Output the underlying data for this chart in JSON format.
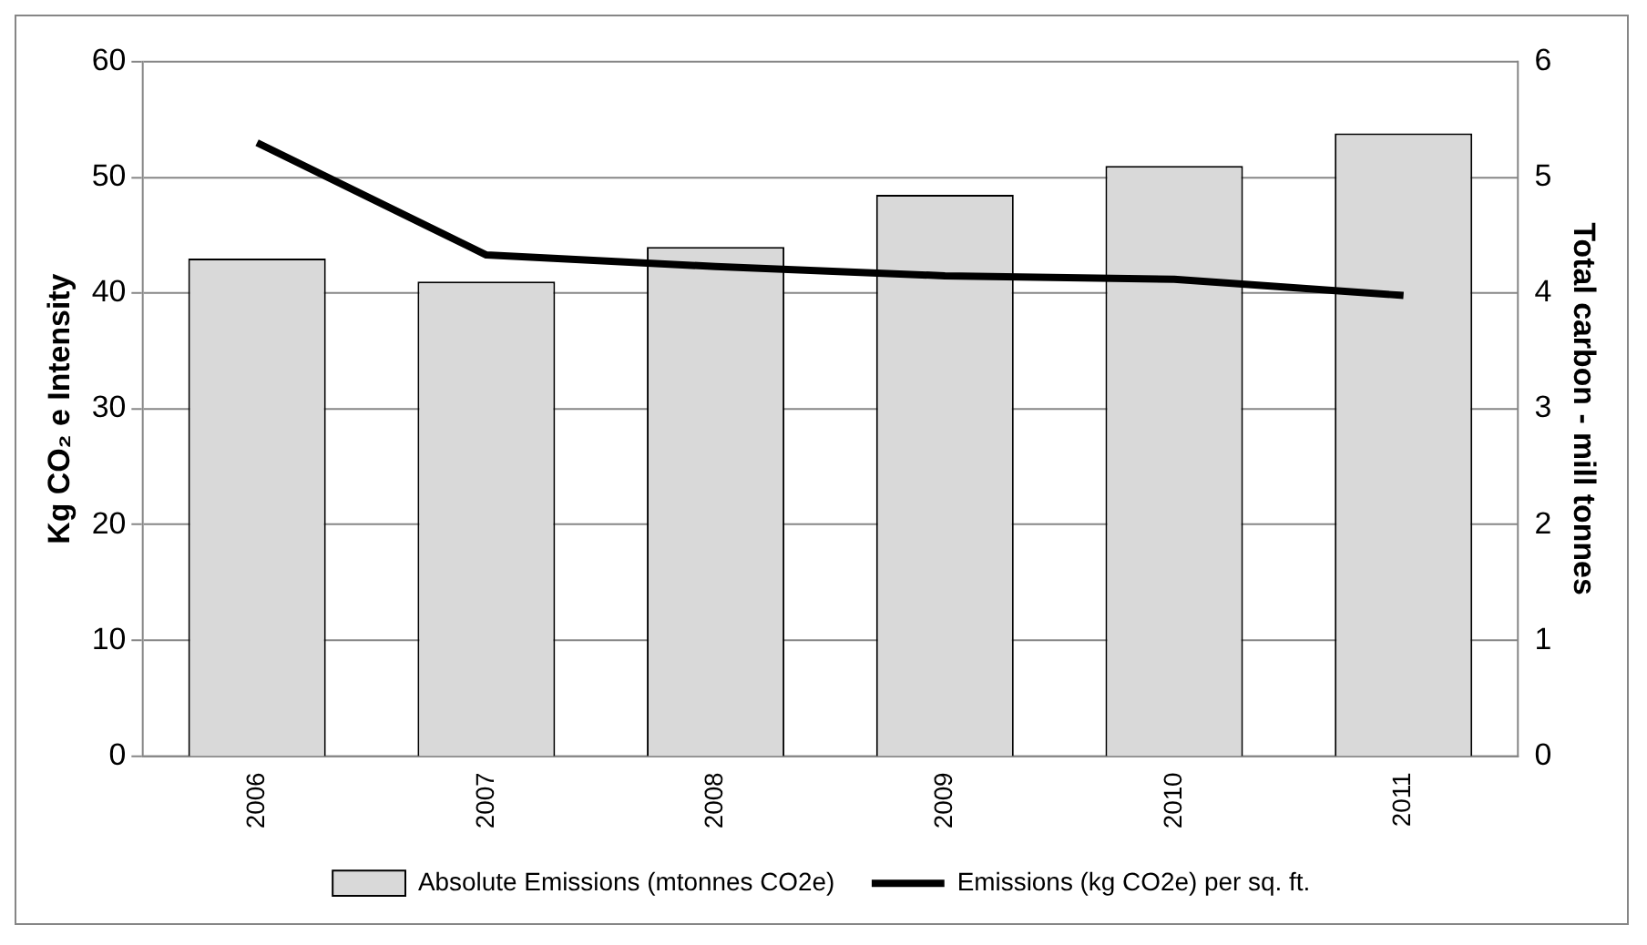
{
  "chart_data": {
    "type": "bar",
    "ylabel": "Kg CO₂ e Intensity",
    "y2label": "Total carbon - mill tonnes",
    "categories": [
      "2006",
      "2007",
      "2008",
      "2009",
      "2010",
      "2011"
    ],
    "series": [
      {
        "name": "Absolute Emissions (mtonnes CO2e)",
        "axis": "y2",
        "color": "#d9d9d9",
        "values": [
          4.3,
          4.1,
          4.4,
          4.85,
          5.1,
          5.38
        ]
      },
      {
        "name": "Emissions (kg CO2e) per sq. ft.",
        "type": "line",
        "axis": "y",
        "color": "#000000",
        "values": [
          53,
          43.3,
          42.3,
          41.5,
          41.2,
          39.8
        ]
      }
    ],
    "ylim": [
      0,
      60
    ],
    "yticks": [
      0,
      10,
      20,
      30,
      40,
      50,
      60
    ],
    "y2lim": [
      0,
      6
    ],
    "y2ticks": [
      0,
      1,
      2,
      3,
      4,
      5,
      6
    ],
    "grid": "y",
    "legend": "bottom",
    "marker": "none",
    "line_style": "solid"
  }
}
